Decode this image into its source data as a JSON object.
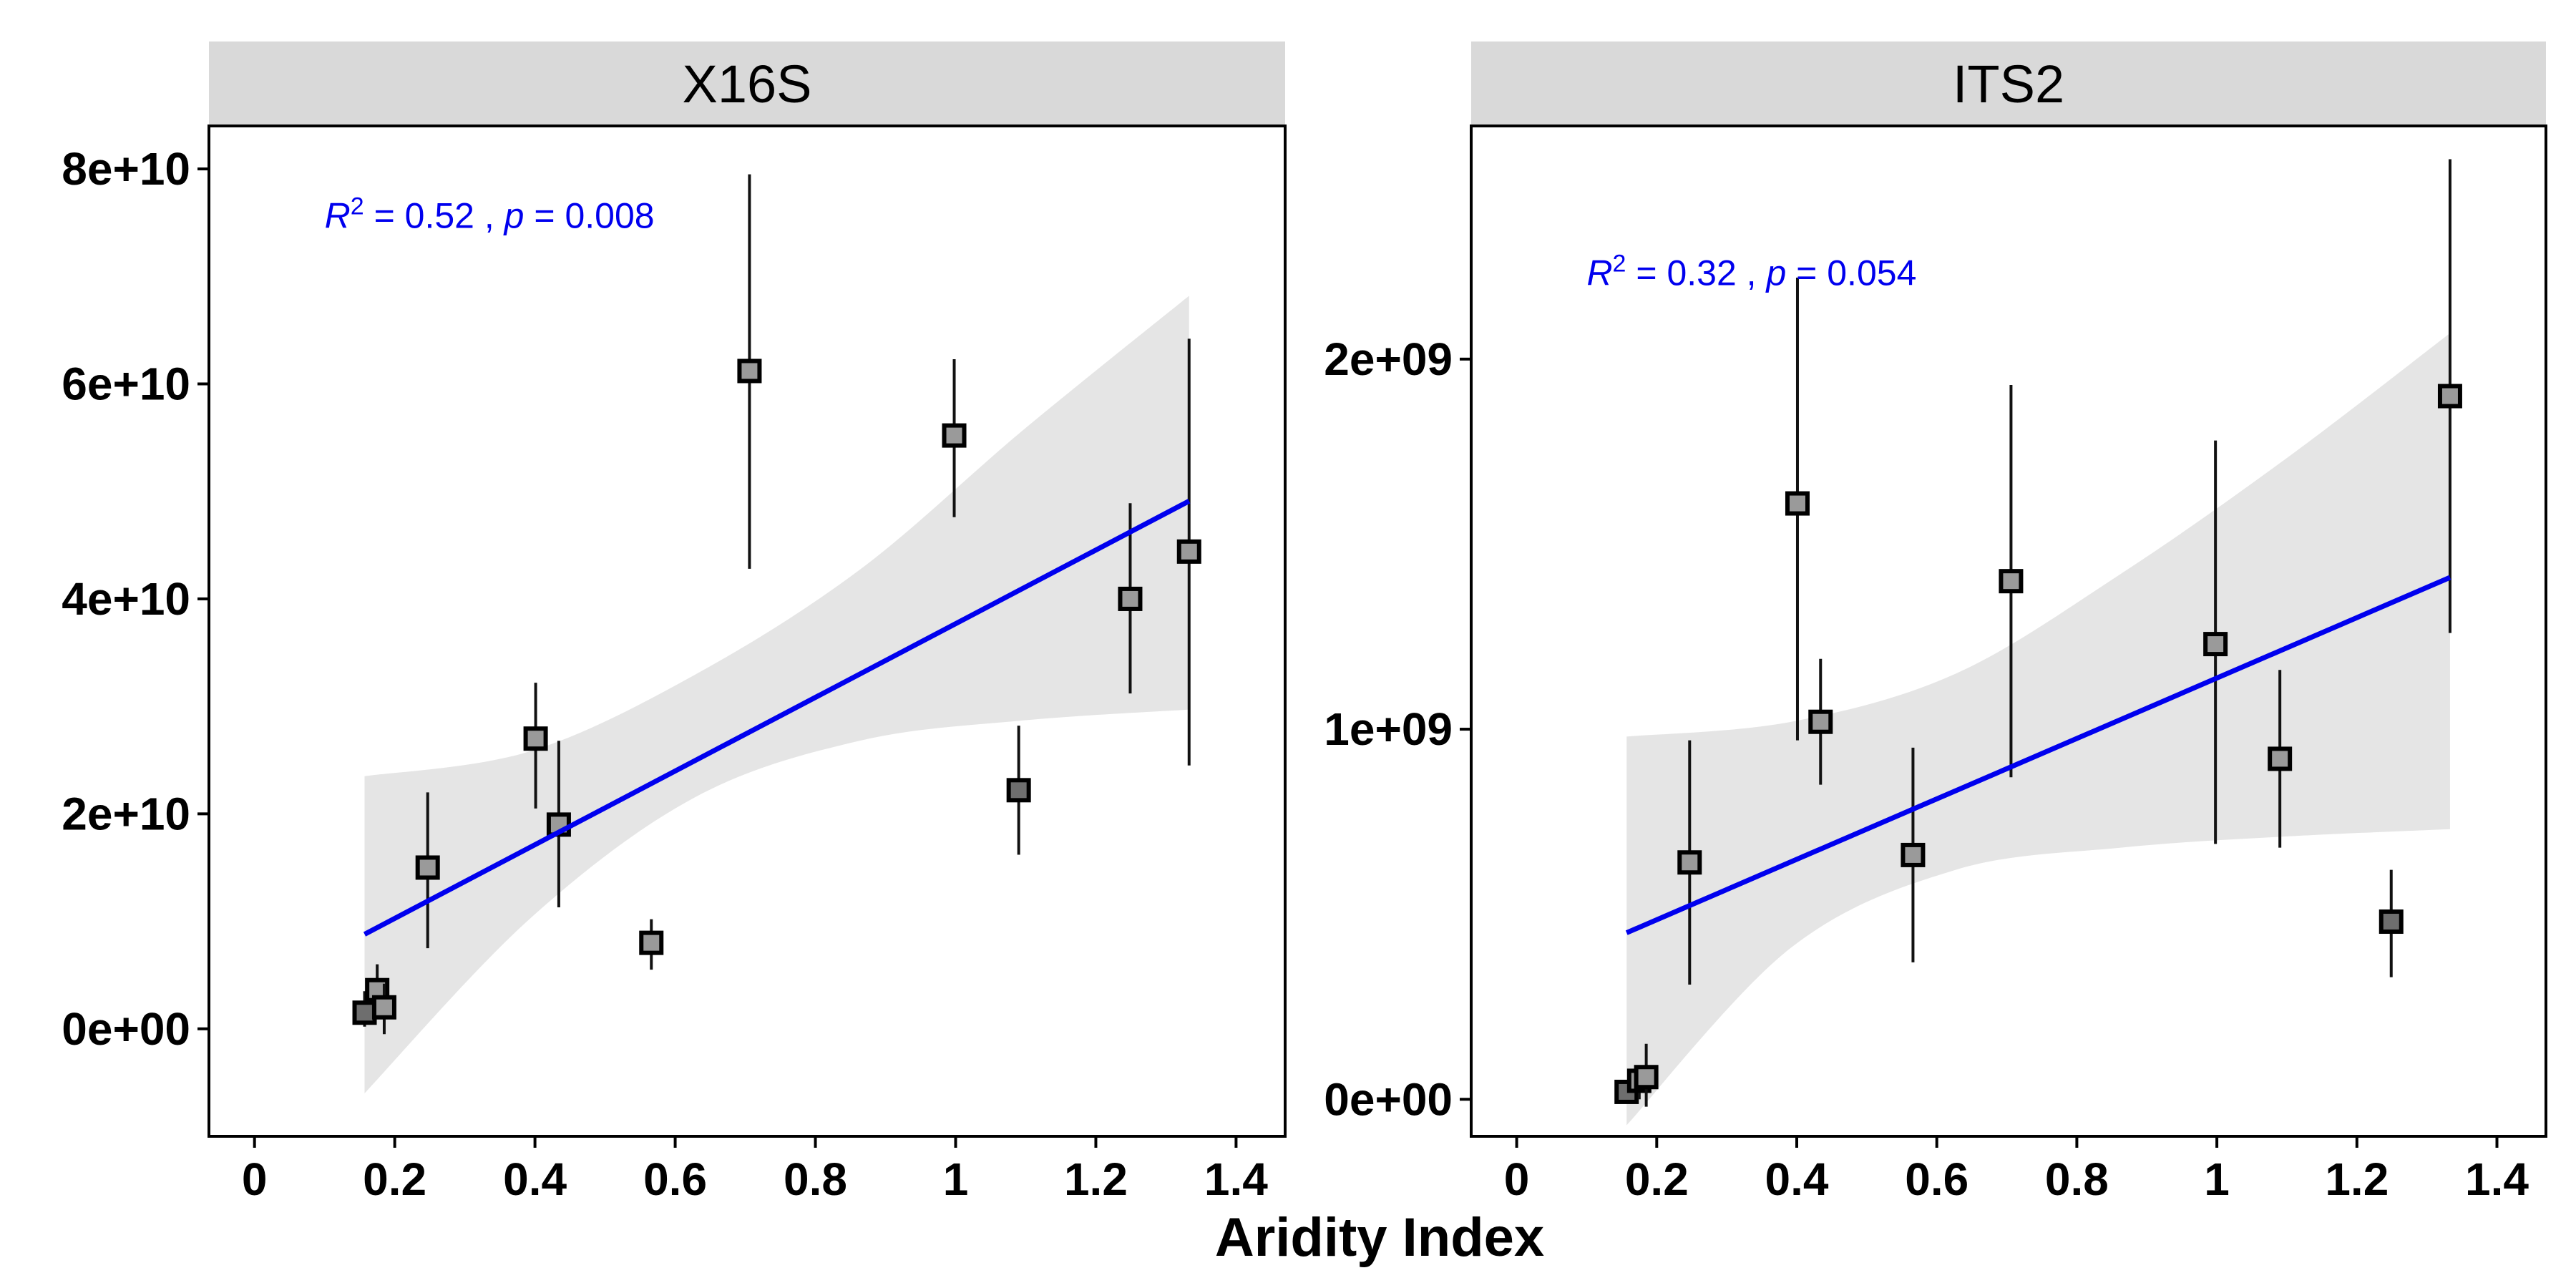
{
  "figure": {
    "xlabel": "Aridity Index"
  },
  "chart_data": [
    {
      "type": "scatter",
      "title": "X16S",
      "xlabel": "Aridity Index",
      "ylabel": "",
      "xlim": [
        -0.065,
        1.47
      ],
      "ylim": [
        -10000000000.0,
        84000000000.0
      ],
      "x_ticks": [
        0,
        0.2,
        0.4,
        0.6,
        0.8,
        1,
        1.2,
        1.4
      ],
      "x_tick_labels": [
        "0",
        "0.2",
        "0.4",
        "0.6",
        "0.8",
        "1",
        "1.2",
        "1.4"
      ],
      "y_ticks": [
        0,
        20000000000.0,
        40000000000.0,
        60000000000.0,
        80000000000.0
      ],
      "y_tick_labels": [
        "0e+00",
        "2e+10",
        "4e+10",
        "6e+10",
        "8e+10"
      ],
      "points": [
        {
          "x": 0.157,
          "y": 1500000000.0,
          "ymin": 200000000.0,
          "ymax": 3500000000.0,
          "shade": "dark"
        },
        {
          "x": 0.175,
          "y": 3600000000.0,
          "ymin": 1500000000.0,
          "ymax": 6000000000.0,
          "shade": "light"
        },
        {
          "x": 0.185,
          "y": 2000000000.0,
          "ymin": -500000000.0,
          "ymax": 4200000000.0,
          "shade": "light"
        },
        {
          "x": 0.247,
          "y": 15000000000.0,
          "ymin": 7500000000.0,
          "ymax": 22000000000.0,
          "shade": "light"
        },
        {
          "x": 0.401,
          "y": 27000000000.0,
          "ymin": 20500000000.0,
          "ymax": 32200000000.0,
          "shade": "light"
        },
        {
          "x": 0.434,
          "y": 19000000000.0,
          "ymin": 11300000000.0,
          "ymax": 26800000000.0,
          "shade": "light"
        },
        {
          "x": 0.566,
          "y": 8000000000.0,
          "ymin": 5500000000.0,
          "ymax": 10200000000.0,
          "shade": "light"
        },
        {
          "x": 0.706,
          "y": 61200000000.0,
          "ymin": 42800000000.0,
          "ymax": 79500000000.0,
          "shade": "light"
        },
        {
          "x": 0.998,
          "y": 55200000000.0,
          "ymin": 47600000000.0,
          "ymax": 62300000000.0,
          "shade": "light"
        },
        {
          "x": 1.09,
          "y": 22200000000.0,
          "ymin": 16200000000.0,
          "ymax": 28200000000.0,
          "shade": "dark"
        },
        {
          "x": 1.249,
          "y": 40000000000.0,
          "ymin": 31200000000.0,
          "ymax": 48900000000.0,
          "shade": "light"
        },
        {
          "x": 1.333,
          "y": 44400000000.0,
          "ymin": 24500000000.0,
          "ymax": 64200000000.0,
          "shade": "light"
        }
      ],
      "fit": {
        "x": [
          0.157,
          1.333
        ],
        "y": [
          8800000000.0,
          49100000000.0
        ],
        "band_x": [
          0.157,
          0.392,
          0.627,
          0.863,
          1.098,
          1.333
        ],
        "band_lower": [
          -6000000000.0,
          10200000000.0,
          21500000000.0,
          26800000000.0,
          28700000000.0,
          29700000000.0
        ],
        "band_upper": [
          23500000000.0,
          25800000000.0,
          32900000000.0,
          42700000000.0,
          55800000000.0,
          68200000000.0
        ]
      },
      "annotation": {
        "r2_symbol": "R",
        "r2_sup": "2",
        "r2_text": " = 0.52 , ",
        "p_symbol": "p",
        "p_text": " = 0.008",
        "x": 0.1,
        "y": 74500000000.0
      },
      "colors": {
        "fit_line": "#0000ee",
        "band": "#e5e5e5",
        "point_fill_light": "#9a9a9a",
        "point_fill_dark": "#6e6e6e",
        "annotation": "#0000ee",
        "strip": "#d9d9d9"
      }
    },
    {
      "type": "scatter",
      "title": "ITS2",
      "xlabel": "Aridity Index",
      "ylabel": "",
      "xlim": [
        -0.065,
        1.47
      ],
      "ylim": [
        -100000000.0,
        2630000000.0
      ],
      "x_ticks": [
        0,
        0.2,
        0.4,
        0.6,
        0.8,
        1,
        1.2,
        1.4
      ],
      "x_tick_labels": [
        "0",
        "0.2",
        "0.4",
        "0.6",
        "0.8",
        "1",
        "1.2",
        "1.4"
      ],
      "y_ticks": [
        0,
        1000000000.0,
        2000000000.0
      ],
      "y_tick_labels": [
        "0e+00",
        "1e+09",
        "2e+09"
      ],
      "points": [
        {
          "x": 0.157,
          "y": 20000000.0,
          "ymin": 0.0,
          "ymax": 40000000.0,
          "shade": "dark"
        },
        {
          "x": 0.175,
          "y": 50000000.0,
          "ymin": 0.0,
          "ymax": 80000000.0,
          "shade": "light"
        },
        {
          "x": 0.185,
          "y": 60000000.0,
          "ymin": -20000000.0,
          "ymax": 150000000.0,
          "shade": "light"
        },
        {
          "x": 0.247,
          "y": 640000000.0,
          "ymin": 310000000.0,
          "ymax": 970000000.0,
          "shade": "light"
        },
        {
          "x": 0.401,
          "y": 1610000000.0,
          "ymin": 970000000.0,
          "ymax": 2220000000.0,
          "shade": "light"
        },
        {
          "x": 0.434,
          "y": 1020000000.0,
          "ymin": 850000000.0,
          "ymax": 1190000000.0,
          "shade": "light"
        },
        {
          "x": 0.566,
          "y": 660000000.0,
          "ymin": 370000000.0,
          "ymax": 950000000.0,
          "shade": "light"
        },
        {
          "x": 0.706,
          "y": 1400000000.0,
          "ymin": 870000000.0,
          "ymax": 1930000000.0,
          "shade": "light"
        },
        {
          "x": 0.998,
          "y": 1230000000.0,
          "ymin": 690000000.0,
          "ymax": 1780000000.0,
          "shade": "light"
        },
        {
          "x": 1.09,
          "y": 920000000.0,
          "ymin": 680000000.0,
          "ymax": 1160000000.0,
          "shade": "light"
        },
        {
          "x": 1.249,
          "y": 480000000.0,
          "ymin": 330000000.0,
          "ymax": 620000000.0,
          "shade": "dark"
        },
        {
          "x": 1.333,
          "y": 1900000000.0,
          "ymin": 1260000000.0,
          "ymax": 2540000000.0,
          "shade": "light"
        }
      ],
      "fit": {
        "x": [
          0.157,
          1.333
        ],
        "y": [
          450000000.0,
          1410000000.0
        ],
        "band_x": [
          0.157,
          0.392,
          0.627,
          0.863,
          1.098,
          1.333
        ],
        "band_lower": [
          -70000000.0,
          410000000.0,
          620000000.0,
          680000000.0,
          710000000.0,
          730000000.0
        ],
        "band_upper": [
          980000000.0,
          1020000000.0,
          1150000000.0,
          1420000000.0,
          1730000000.0,
          2070000000.0
        ]
      },
      "annotation": {
        "r2_symbol": "R",
        "r2_sup": "2",
        "r2_text": " = 0.32 , ",
        "p_symbol": "p",
        "p_text": " = 0.054",
        "x": 0.1,
        "y": 2200000000.0
      },
      "colors": {
        "fit_line": "#0000ee",
        "band": "#e5e5e5",
        "point_fill_light": "#9a9a9a",
        "point_fill_dark": "#6e6e6e",
        "annotation": "#0000ee",
        "strip": "#d9d9d9"
      }
    }
  ]
}
